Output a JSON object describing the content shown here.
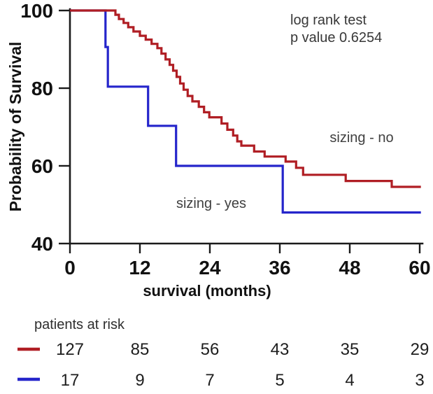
{
  "chart_data": {
    "type": "line",
    "subtype": "kaplan-meier-step-curves",
    "title": "",
    "xlabel": "survival (months)",
    "ylabel": "Probability of Survival",
    "xlim": [
      0,
      60
    ],
    "ylim": [
      40,
      100
    ],
    "x_ticks": [
      0,
      12,
      24,
      36,
      48,
      60
    ],
    "y_ticks": [
      100,
      80,
      60,
      40
    ],
    "grid": false,
    "legend_position": "inline-labels",
    "annotation": {
      "line1": "log rank test",
      "line2": "p value 0.6254"
    },
    "end_month": 60.2,
    "series": [
      {
        "name": "sizing - no",
        "color": "#b01e24",
        "label_inline": "sizing - no",
        "steps": [
          [
            0,
            100
          ],
          [
            7.8,
            98.9
          ],
          [
            8.4,
            97.8
          ],
          [
            9.2,
            96.8
          ],
          [
            10,
            95.7
          ],
          [
            10.9,
            94.6
          ],
          [
            12,
            93.5
          ],
          [
            13,
            92.5
          ],
          [
            14,
            91.4
          ],
          [
            15,
            90.3
          ],
          [
            15.7,
            88.9
          ],
          [
            16.4,
            87.4
          ],
          [
            17.1,
            86.0
          ],
          [
            17.7,
            84.5
          ],
          [
            18.3,
            82.9
          ],
          [
            18.9,
            81.2
          ],
          [
            19.5,
            79.6
          ],
          [
            20.2,
            78.0
          ],
          [
            21,
            76.6
          ],
          [
            22.1,
            75.2
          ],
          [
            23,
            73.8
          ],
          [
            23.9,
            72.5
          ],
          [
            26,
            70.9
          ],
          [
            27,
            69.3
          ],
          [
            28,
            67.8
          ],
          [
            28.7,
            66.3
          ],
          [
            29.4,
            65.2
          ],
          [
            31.6,
            63.7
          ],
          [
            33.4,
            62.4
          ],
          [
            37,
            61.1
          ],
          [
            38.8,
            59.5
          ],
          [
            40,
            57.7
          ],
          [
            47.3,
            56.1
          ],
          [
            55.2,
            54.6
          ]
        ]
      },
      {
        "name": "sizing - yes",
        "color": "#2525cb",
        "label_inline": "sizing - yes",
        "steps": [
          [
            0,
            100
          ],
          [
            6.1,
            90.6
          ],
          [
            6.5,
            80.4
          ],
          [
            13.4,
            70.3
          ],
          [
            18.2,
            60.0
          ],
          [
            36.5,
            48.0
          ]
        ]
      }
    ],
    "at_risk": {
      "title": "patients at risk",
      "times": [
        0,
        12,
        24,
        36,
        48,
        60
      ],
      "rows": [
        {
          "series": "sizing - no",
          "color": "#b01e24",
          "counts": [
            127,
            85,
            56,
            43,
            35,
            29
          ]
        },
        {
          "series": "sizing - yes",
          "color": "#2525cb",
          "counts": [
            17,
            9,
            7,
            5,
            4,
            3
          ]
        }
      ]
    }
  }
}
